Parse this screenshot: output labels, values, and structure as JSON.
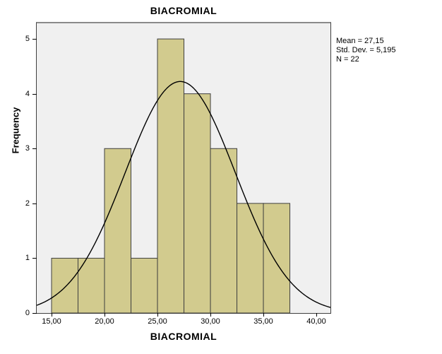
{
  "figure": {
    "title": "BIACROMIAL",
    "x_axis_label": "BIACROMIAL",
    "y_axis_label": "Frequency"
  },
  "chart_data": {
    "type": "bar",
    "subtype": "histogram_with_normal_curve",
    "title": "BIACROMIAL",
    "xlabel": "BIACROMIAL",
    "ylabel": "Frequency",
    "bin_width": 2.5,
    "bin_edges": [
      15.0,
      17.5,
      20.0,
      22.5,
      25.0,
      27.5,
      30.0,
      32.5,
      35.0,
      37.5
    ],
    "frequencies": [
      1,
      1,
      3,
      1,
      5,
      4,
      3,
      2,
      2
    ],
    "x_tick_labels": [
      "15,00",
      "20,00",
      "25,00",
      "30,00",
      "35,00",
      "40,00"
    ],
    "x_tick_values": [
      15,
      20,
      25,
      30,
      35,
      40
    ],
    "y_tick_labels": [
      "0",
      "1",
      "2",
      "3",
      "4",
      "5"
    ],
    "y_tick_values": [
      0,
      1,
      2,
      3,
      4,
      5
    ],
    "xlim": [
      13.6,
      41.33
    ],
    "ylim": [
      0,
      5.285
    ],
    "grid": false,
    "legend_position": "none",
    "normal_curve": {
      "mean": 27.15,
      "std_dev": 5.195,
      "n": 22
    },
    "stats_box": [
      "Mean = 27,15",
      "Std. Dev. = 5,195",
      "N = 22"
    ],
    "colors": {
      "bar_fill": "#d2cb8e",
      "bar_stroke": "#3f3f3f",
      "plot_background": "#f0f0f0",
      "curve": "#000000",
      "frame": "#3f3f3f"
    }
  }
}
